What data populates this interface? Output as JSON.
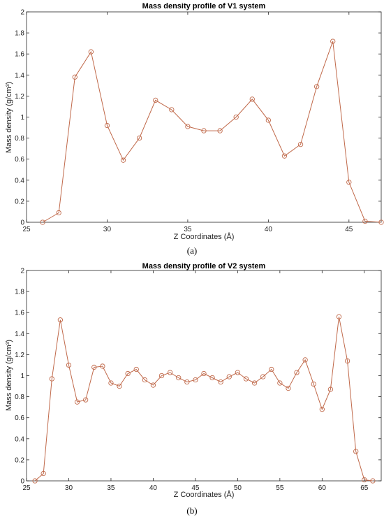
{
  "chart_data": [
    {
      "type": "line",
      "panel": "(a)",
      "title": "Mass density profile of V1 system",
      "xlabel": "Z Coordinates (Å)",
      "ylabel": "Mass density (g/cm³)",
      "xlim": [
        25,
        47
      ],
      "ylim": [
        0,
        2
      ],
      "xticks": [
        25,
        30,
        35,
        40,
        45
      ],
      "yticks": [
        0,
        0.2,
        0.4,
        0.6,
        0.8,
        1,
        1.2,
        1.4,
        1.6,
        1.8,
        2
      ],
      "color": "#c0694a",
      "x": [
        26,
        27,
        28,
        29,
        30,
        31,
        32,
        33,
        34,
        35,
        36,
        37,
        38,
        39,
        40,
        41,
        42,
        43,
        44,
        45,
        46,
        47
      ],
      "y": [
        0.0,
        0.09,
        1.38,
        1.62,
        0.92,
        0.59,
        0.8,
        1.16,
        1.07,
        0.91,
        0.87,
        0.87,
        1.0,
        1.17,
        0.97,
        0.63,
        0.74,
        1.29,
        1.72,
        0.38,
        0.01,
        0.0
      ]
    },
    {
      "type": "line",
      "panel": "(b)",
      "title": "Mass density profile of V2 system",
      "xlabel": "Z Coordinates (Å)",
      "ylabel": "Mass density (g/cm³)",
      "xlim": [
        25,
        67
      ],
      "ylim": [
        0,
        2
      ],
      "xticks": [
        25,
        30,
        35,
        40,
        45,
        50,
        55,
        60,
        65
      ],
      "yticks": [
        0,
        0.2,
        0.4,
        0.6,
        0.8,
        1,
        1.2,
        1.4,
        1.6,
        1.8,
        2
      ],
      "color": "#c0694a",
      "x": [
        26,
        27,
        28,
        29,
        30,
        31,
        32,
        33,
        34,
        35,
        36,
        37,
        38,
        39,
        40,
        41,
        42,
        43,
        44,
        45,
        46,
        47,
        48,
        49,
        50,
        51,
        52,
        53,
        54,
        55,
        56,
        57,
        58,
        59,
        60,
        61,
        62,
        63,
        64,
        65,
        66
      ],
      "y": [
        0.0,
        0.07,
        0.97,
        1.53,
        1.1,
        0.75,
        0.77,
        1.08,
        1.09,
        0.93,
        0.9,
        1.02,
        1.06,
        0.96,
        0.91,
        1.0,
        1.03,
        0.98,
        0.94,
        0.96,
        1.02,
        0.98,
        0.94,
        0.99,
        1.03,
        0.97,
        0.93,
        0.99,
        1.06,
        0.93,
        0.88,
        1.03,
        1.15,
        0.92,
        0.68,
        0.87,
        1.56,
        1.14,
        0.28,
        0.01,
        0.0
      ]
    }
  ]
}
